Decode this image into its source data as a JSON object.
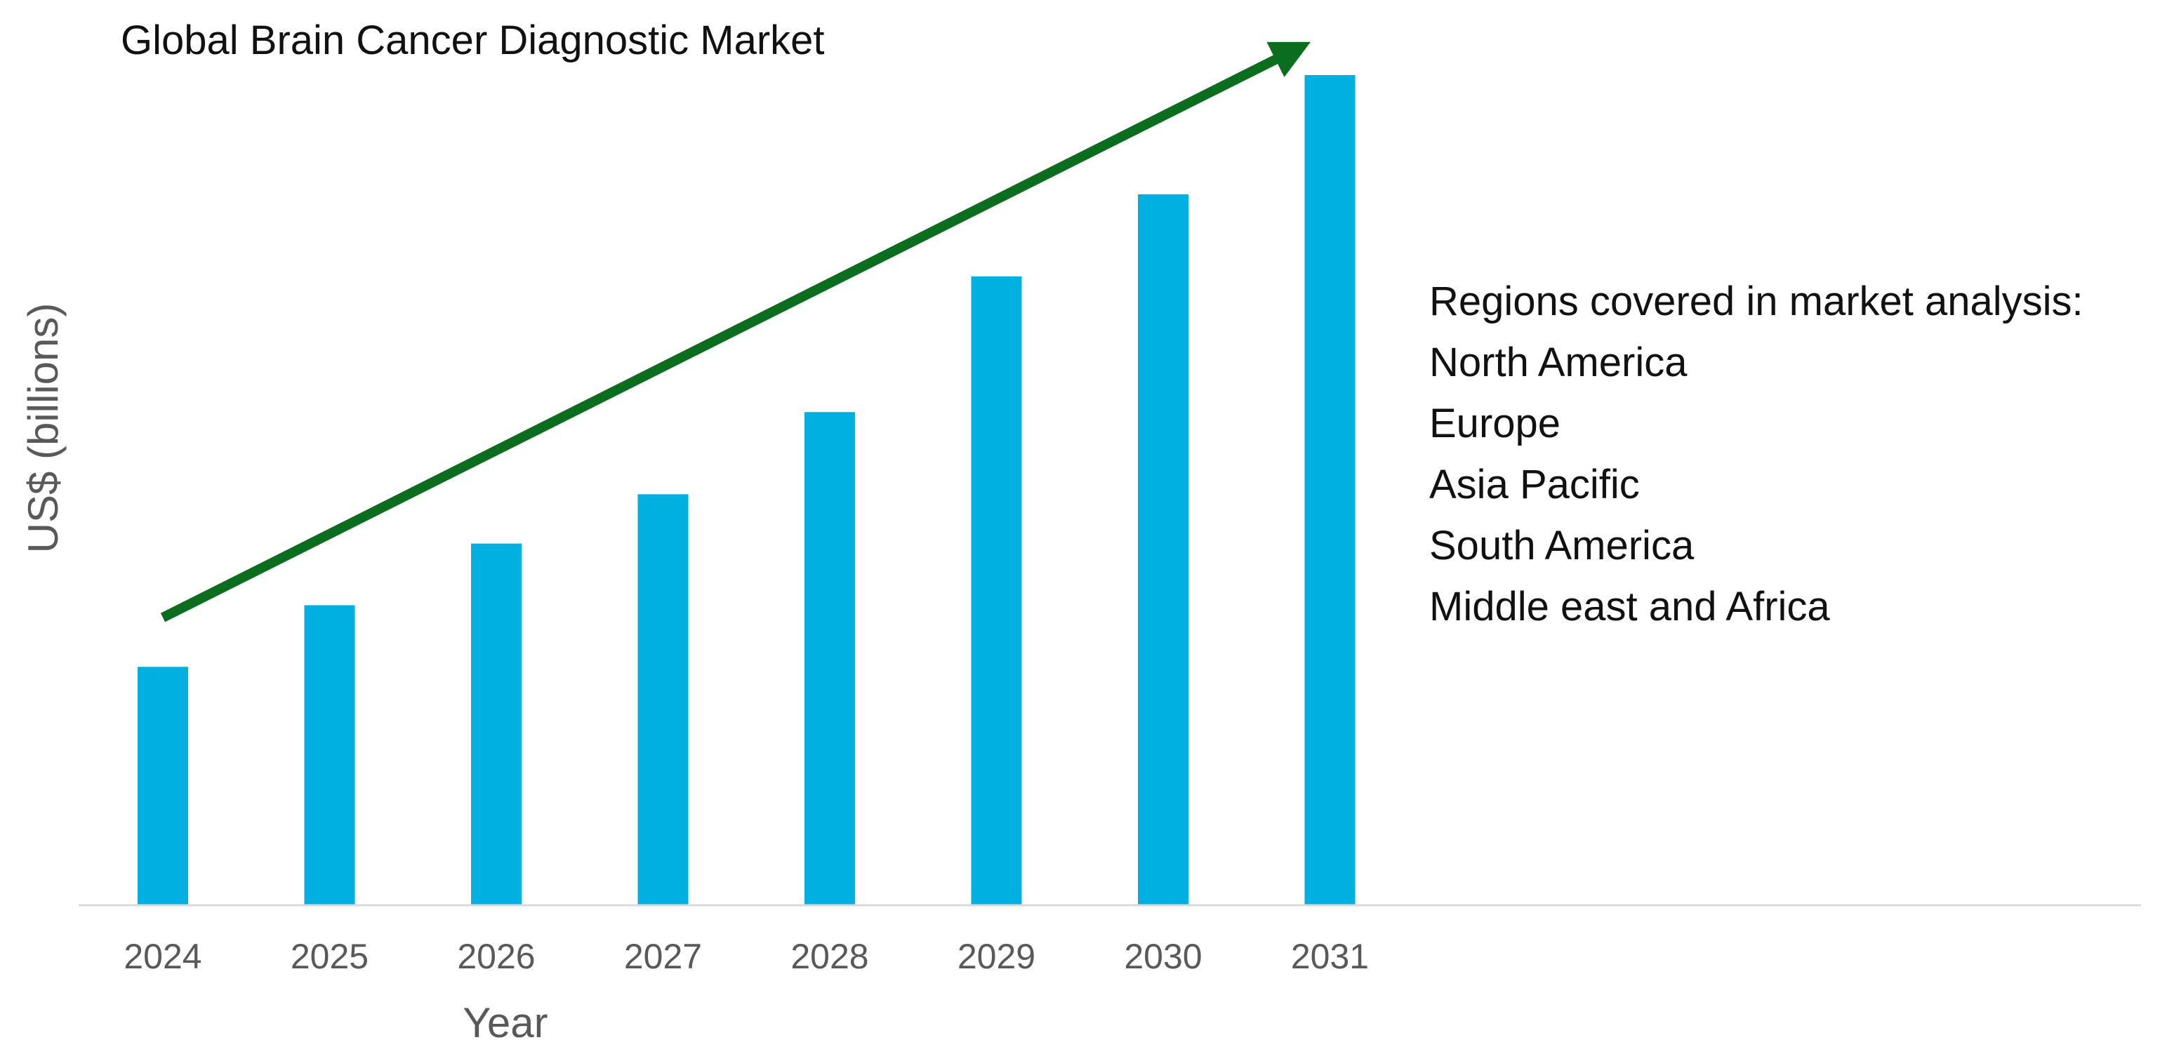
{
  "colors": {
    "bar": "#00b0e0",
    "trend_arrow": "#0b6e1f",
    "baseline": "#d9d9d9"
  },
  "chart_data": {
    "type": "bar",
    "title": "Global Brain Cancer Diagnostic Market",
    "xlabel": "Year",
    "ylabel": "US$ (billions)",
    "categories": [
      "2024",
      "2025",
      "2026",
      "2027",
      "2028",
      "2029",
      "2030",
      "2031"
    ],
    "values": [
      2.9,
      3.65,
      4.4,
      5.0,
      6.0,
      7.65,
      8.65,
      10.1
    ],
    "ylim": [
      0,
      10.1
    ],
    "y_tick_labels_shown": false,
    "grid": false,
    "annotation": {
      "type": "trend-arrow",
      "from": {
        "x": "2024",
        "y": 3.5
      },
      "to": {
        "x": "2031",
        "y": 10.45
      }
    }
  },
  "regions_panel": {
    "heading": "Regions covered in market analysis:",
    "items": [
      "North America",
      "Europe",
      "Asia Pacific",
      "South America",
      "Middle east and Africa"
    ]
  }
}
